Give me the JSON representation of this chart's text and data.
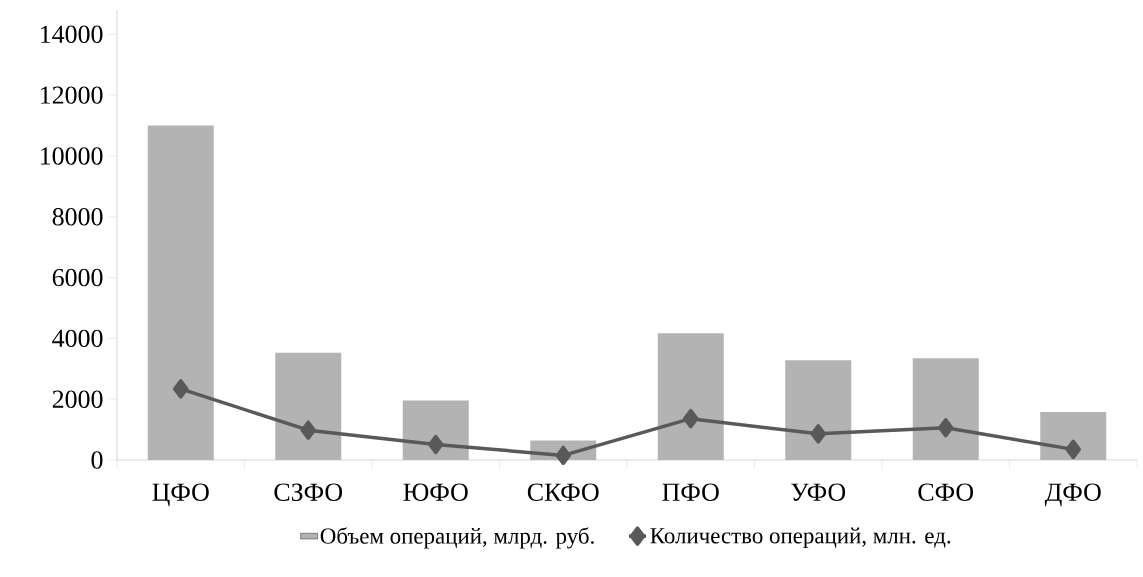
{
  "chart_data": {
    "type": "bar",
    "categories": [
      "ЦФО",
      "СЗФО",
      "ЮФО",
      "СКФО",
      "ПФО",
      "УФО",
      "СФО",
      "ДФО"
    ],
    "series": [
      {
        "name": "Объем операций, млрд. руб.",
        "color": "#b3b3b3",
        "values": [
          11000,
          3530,
          1960,
          640,
          4170,
          3280,
          3350,
          1580
        ]
      },
      {
        "name": "Количество операций, млн. ед.",
        "type": "line",
        "color": "#595959",
        "marker": "diamond",
        "values": [
          2340,
          980,
          510,
          150,
          1360,
          860,
          1060,
          350
        ]
      }
    ],
    "ylim": [
      0,
      14800
    ],
    "yticks": [
      0,
      2000,
      4000,
      6000,
      8000,
      10000,
      12000,
      14000
    ],
    "legend": "bottom",
    "grid": false
  }
}
